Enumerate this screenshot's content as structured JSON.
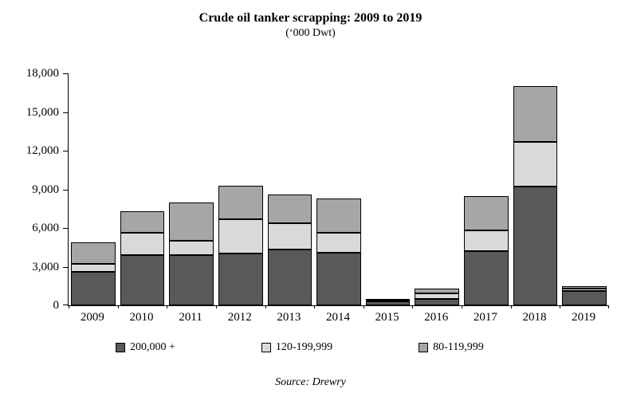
{
  "title": "Crude oil tanker scrapping: 2009 to 2019",
  "subtitle": "(‘000 Dwt)",
  "source": "Source: Drewry",
  "chart_data": {
    "type": "bar",
    "stacked": true,
    "title": "Crude oil tanker scrapping: 2009 to 2019",
    "subtitle": "(‘000 Dwt)",
    "unit": "'000 Dwt",
    "categories": [
      "2009",
      "2010",
      "2011",
      "2012",
      "2013",
      "2014",
      "2015",
      "2016",
      "2017",
      "2018",
      "2019"
    ],
    "series": [
      {
        "name": "200,000 +",
        "color": "#595959",
        "values": [
          2600,
          3900,
          3900,
          4000,
          4300,
          4100,
          300,
          500,
          4200,
          9200,
          1100
        ]
      },
      {
        "name": "120-199,999",
        "color": "#d9d9d9",
        "values": [
          600,
          1700,
          1100,
          2700,
          2100,
          1500,
          100,
          400,
          1600,
          3500,
          200
        ]
      },
      {
        "name": "80-119,999",
        "color": "#a6a6a6",
        "values": [
          1700,
          1700,
          3000,
          2600,
          2200,
          2700,
          100,
          400,
          2700,
          4300,
          200
        ]
      }
    ],
    "ylim": [
      0,
      18000
    ],
    "ytick_step": 3000,
    "yticks": [
      "18,000",
      "15,000",
      "12,000",
      "9,000",
      "6,000",
      "3,000",
      "0"
    ],
    "grid": false,
    "legend_position": "bottom"
  },
  "legend": [
    {
      "label": "200,000 +",
      "color": "#595959"
    },
    {
      "label": "120-199,999",
      "color": "#d9d9d9"
    },
    {
      "label": "80-119,999",
      "color": "#a6a6a6"
    }
  ]
}
